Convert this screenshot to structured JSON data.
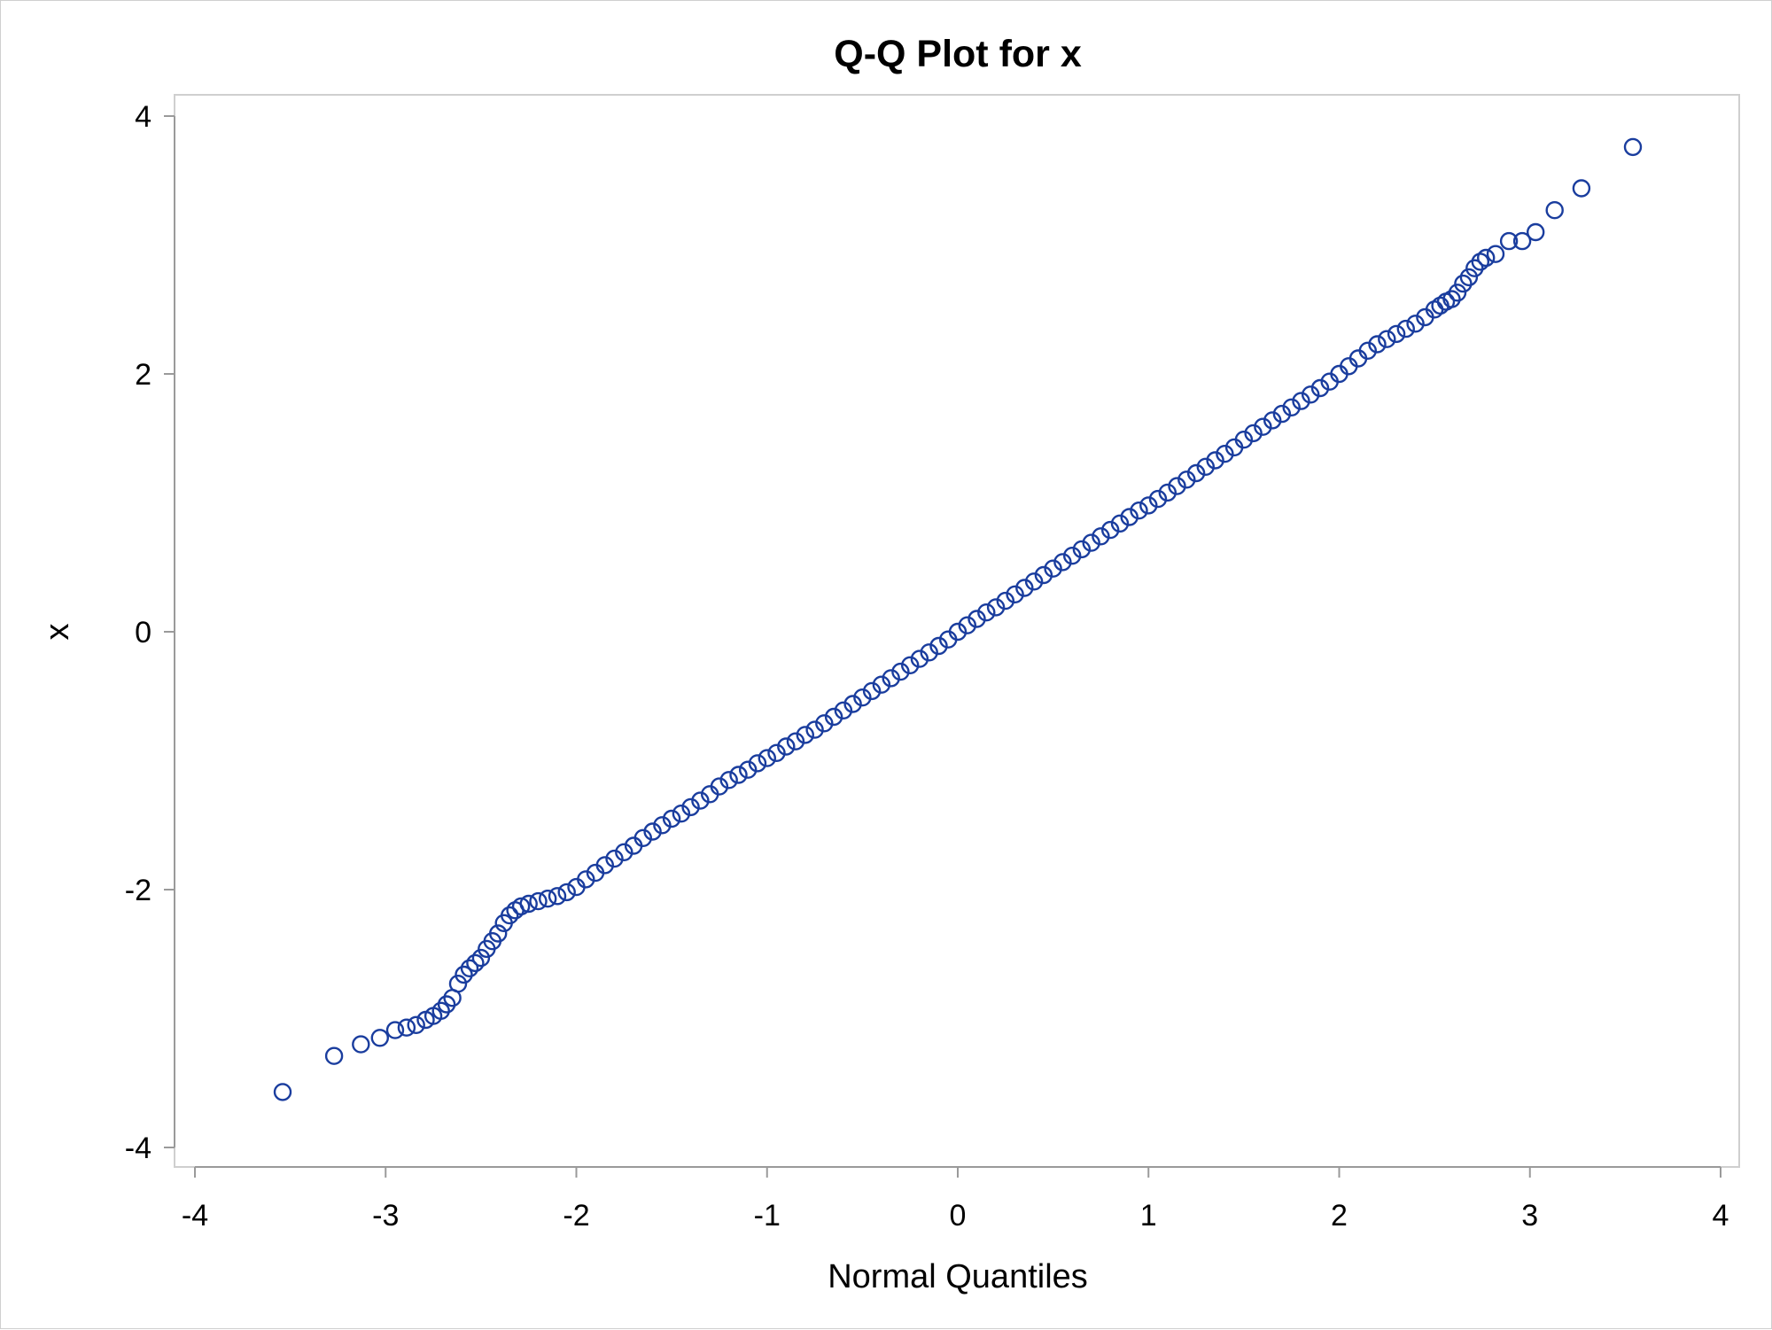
{
  "chart_data": {
    "type": "scatter",
    "title": "Q-Q Plot for x",
    "xlabel": "Normal Quantiles",
    "ylabel": "x",
    "xlim": [
      -4,
      4
    ],
    "ylim": [
      -4,
      4
    ],
    "x_ticks": [
      "-4",
      "-3",
      "-2",
      "-1",
      "0",
      "1",
      "2",
      "3",
      "4"
    ],
    "y_ticks": [
      "-4",
      "-2",
      "0",
      "2",
      "4"
    ],
    "grid": false,
    "marker": "open-circle",
    "colors": {
      "marker": "#1a3d9e",
      "axis": "#9a9a9a",
      "frame": "#cfcfcf"
    },
    "series": [
      {
        "points": [
          [
            -3.54,
            -3.57
          ],
          [
            -3.27,
            -3.29
          ],
          [
            -3.13,
            -3.2
          ],
          [
            -3.03,
            -3.15
          ],
          [
            -2.95,
            -3.09
          ],
          [
            -2.89,
            -3.07
          ],
          [
            -2.84,
            -3.05
          ],
          [
            -2.79,
            -3.01
          ],
          [
            -2.75,
            -2.98
          ],
          [
            -2.71,
            -2.94
          ],
          [
            -2.68,
            -2.89
          ],
          [
            -2.65,
            -2.84
          ],
          [
            -2.62,
            -2.73
          ],
          [
            -2.59,
            -2.66
          ],
          [
            -2.56,
            -2.61
          ],
          [
            -2.53,
            -2.57
          ],
          [
            -2.5,
            -2.53
          ],
          [
            -2.47,
            -2.46
          ],
          [
            -2.44,
            -2.4
          ],
          [
            -2.41,
            -2.34
          ],
          [
            -2.38,
            -2.26
          ],
          [
            -2.35,
            -2.2
          ],
          [
            -2.32,
            -2.16
          ],
          [
            -2.29,
            -2.13
          ],
          [
            -2.25,
            -2.11
          ],
          [
            -2.2,
            -2.09
          ],
          [
            -2.15,
            -2.07
          ],
          [
            -2.1,
            -2.05
          ],
          [
            -2.05,
            -2.02
          ],
          [
            -2.0,
            -1.98
          ],
          [
            -1.95,
            -1.92
          ],
          [
            -1.9,
            -1.87
          ],
          [
            -1.85,
            -1.81
          ],
          [
            -1.8,
            -1.76
          ],
          [
            -1.75,
            -1.71
          ],
          [
            -1.7,
            -1.66
          ],
          [
            -1.65,
            -1.6
          ],
          [
            -1.6,
            -1.55
          ],
          [
            -1.55,
            -1.5
          ],
          [
            -1.5,
            -1.45
          ],
          [
            -1.45,
            -1.41
          ],
          [
            -1.4,
            -1.36
          ],
          [
            -1.35,
            -1.31
          ],
          [
            -1.3,
            -1.26
          ],
          [
            -1.25,
            -1.2
          ],
          [
            -1.2,
            -1.15
          ],
          [
            -1.15,
            -1.11
          ],
          [
            -1.1,
            -1.07
          ],
          [
            -1.05,
            -1.02
          ],
          [
            -1.0,
            -0.98
          ],
          [
            -0.95,
            -0.94
          ],
          [
            -0.9,
            -0.89
          ],
          [
            -0.85,
            -0.85
          ],
          [
            -0.8,
            -0.8
          ],
          [
            -0.75,
            -0.76
          ],
          [
            -0.7,
            -0.71
          ],
          [
            -0.65,
            -0.66
          ],
          [
            -0.6,
            -0.61
          ],
          [
            -0.55,
            -0.56
          ],
          [
            -0.5,
            -0.51
          ],
          [
            -0.45,
            -0.46
          ],
          [
            -0.4,
            -0.41
          ],
          [
            -0.35,
            -0.36
          ],
          [
            -0.3,
            -0.31
          ],
          [
            -0.25,
            -0.26
          ],
          [
            -0.2,
            -0.21
          ],
          [
            -0.15,
            -0.16
          ],
          [
            -0.1,
            -0.11
          ],
          [
            -0.05,
            -0.06
          ],
          [
            0.0,
            0.0
          ],
          [
            0.05,
            0.05
          ],
          [
            0.1,
            0.1
          ],
          [
            0.15,
            0.15
          ],
          [
            0.2,
            0.19
          ],
          [
            0.25,
            0.24
          ],
          [
            0.3,
            0.29
          ],
          [
            0.35,
            0.34
          ],
          [
            0.4,
            0.39
          ],
          [
            0.45,
            0.44
          ],
          [
            0.5,
            0.49
          ],
          [
            0.55,
            0.54
          ],
          [
            0.6,
            0.59
          ],
          [
            0.65,
            0.64
          ],
          [
            0.7,
            0.69
          ],
          [
            0.75,
            0.74
          ],
          [
            0.8,
            0.79
          ],
          [
            0.85,
            0.84
          ],
          [
            0.9,
            0.89
          ],
          [
            0.95,
            0.94
          ],
          [
            1.0,
            0.98
          ],
          [
            1.05,
            1.03
          ],
          [
            1.1,
            1.08
          ],
          [
            1.15,
            1.13
          ],
          [
            1.2,
            1.18
          ],
          [
            1.25,
            1.23
          ],
          [
            1.3,
            1.28
          ],
          [
            1.35,
            1.33
          ],
          [
            1.4,
            1.38
          ],
          [
            1.45,
            1.43
          ],
          [
            1.5,
            1.49
          ],
          [
            1.55,
            1.54
          ],
          [
            1.6,
            1.59
          ],
          [
            1.65,
            1.64
          ],
          [
            1.7,
            1.69
          ],
          [
            1.75,
            1.74
          ],
          [
            1.8,
            1.79
          ],
          [
            1.85,
            1.84
          ],
          [
            1.9,
            1.89
          ],
          [
            1.95,
            1.94
          ],
          [
            2.0,
            2.0
          ],
          [
            2.05,
            2.06
          ],
          [
            2.1,
            2.12
          ],
          [
            2.15,
            2.18
          ],
          [
            2.2,
            2.23
          ],
          [
            2.25,
            2.27
          ],
          [
            2.3,
            2.31
          ],
          [
            2.35,
            2.35
          ],
          [
            2.4,
            2.39
          ],
          [
            2.45,
            2.44
          ],
          [
            2.5,
            2.5
          ],
          [
            2.53,
            2.53
          ],
          [
            2.56,
            2.56
          ],
          [
            2.59,
            2.58
          ],
          [
            2.62,
            2.63
          ],
          [
            2.65,
            2.7
          ],
          [
            2.68,
            2.75
          ],
          [
            2.71,
            2.82
          ],
          [
            2.74,
            2.87
          ],
          [
            2.77,
            2.9
          ],
          [
            2.82,
            2.93
          ],
          [
            2.89,
            3.03
          ],
          [
            2.96,
            3.03
          ],
          [
            3.03,
            3.1
          ],
          [
            3.13,
            3.27
          ],
          [
            3.27,
            3.44
          ],
          [
            3.54,
            3.76
          ]
        ]
      }
    ]
  }
}
